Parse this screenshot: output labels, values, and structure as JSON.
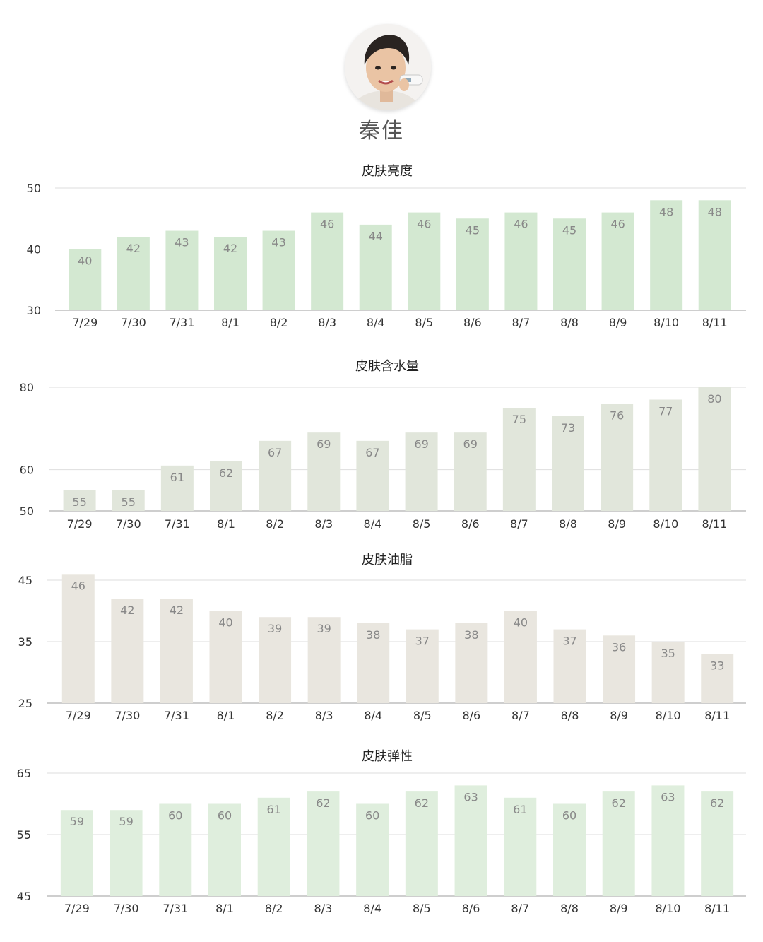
{
  "profile": {
    "name": "秦佳",
    "avatar_icon": "person-portrait-icon"
  },
  "chart_data": [
    {
      "type": "bar",
      "title": "皮肤亮度",
      "categories": [
        "7/29",
        "7/30",
        "7/31",
        "8/1",
        "8/2",
        "8/3",
        "8/4",
        "8/5",
        "8/6",
        "8/7",
        "8/8",
        "8/9",
        "8/10",
        "8/11"
      ],
      "values": [
        40,
        42,
        43,
        42,
        43,
        46,
        44,
        46,
        45,
        46,
        45,
        46,
        48,
        48
      ],
      "yticks": [
        30,
        40,
        50
      ],
      "ylim": [
        30,
        50
      ],
      "bar_color": "#d3e8d1",
      "grid": true
    },
    {
      "type": "bar",
      "title": "皮肤含水量",
      "categories": [
        "7/29",
        "7/30",
        "7/31",
        "8/1",
        "8/2",
        "8/3",
        "8/4",
        "8/5",
        "8/6",
        "8/7",
        "8/8",
        "8/9",
        "8/10",
        "8/11"
      ],
      "values": [
        55,
        55,
        61,
        62,
        67,
        69,
        67,
        69,
        69,
        75,
        73,
        76,
        77,
        80
      ],
      "yticks": [
        50,
        60,
        80
      ],
      "ylim": [
        50,
        80
      ],
      "bar_color": "#e1e6db",
      "grid": true
    },
    {
      "type": "bar",
      "title": "皮肤油脂",
      "categories": [
        "7/29",
        "7/30",
        "7/31",
        "8/1",
        "8/2",
        "8/3",
        "8/4",
        "8/5",
        "8/6",
        "8/7",
        "8/8",
        "8/9",
        "8/10",
        "8/11"
      ],
      "values": [
        46,
        42,
        42,
        40,
        39,
        39,
        38,
        37,
        38,
        40,
        37,
        36,
        35,
        33
      ],
      "yticks": [
        25,
        35,
        45
      ],
      "ylim": [
        25,
        45
      ],
      "bar_color": "#e9e6df",
      "grid": true
    },
    {
      "type": "bar",
      "title": "皮肤弹性",
      "categories": [
        "7/29",
        "7/30",
        "7/31",
        "8/1",
        "8/2",
        "8/3",
        "8/4",
        "8/5",
        "8/6",
        "8/7",
        "8/8",
        "8/9",
        "8/10",
        "8/11"
      ],
      "values": [
        59,
        59,
        60,
        60,
        61,
        62,
        60,
        62,
        63,
        61,
        60,
        62,
        63,
        62
      ],
      "yticks": [
        45,
        55,
        65
      ],
      "ylim": [
        45,
        65
      ],
      "bar_color": "#dfeedd",
      "grid": true
    }
  ]
}
